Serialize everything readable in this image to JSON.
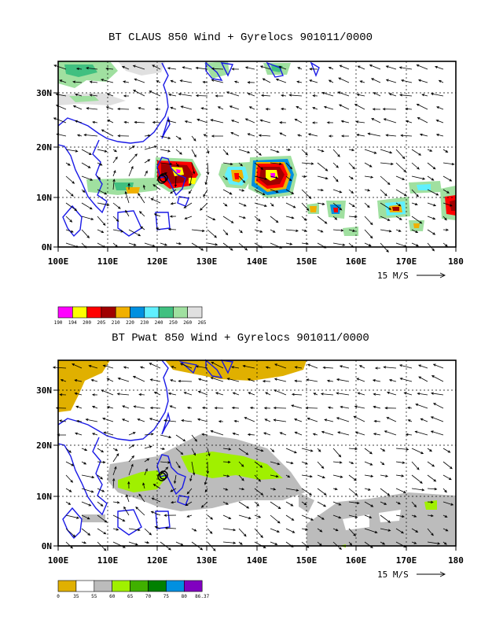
{
  "panels": [
    {
      "title": "BT CLAUS 850 Wind + Gyrelocs 901011/0000",
      "lon_labels": [
        "100E",
        "110E",
        "120E",
        "130E",
        "140E",
        "150E",
        "160E",
        "170E",
        "180"
      ],
      "lat_labels": [
        "0N",
        "10N",
        "20N",
        "30N"
      ],
      "ref_vector_label": "15 M/S",
      "colorbar": {
        "colors": [
          "#ff00ff",
          "#ffff00",
          "#ff0000",
          "#a00000",
          "#f0b000",
          "#0090e0",
          "#60f0ff",
          "#40c080",
          "#a0e0a0",
          "#e0e0e0"
        ],
        "labels": [
          "190",
          "194",
          "200",
          "205",
          "210",
          "220",
          "230",
          "240",
          "250",
          "260",
          "265"
        ]
      }
    },
    {
      "title": "BT Pwat 850 Wind + Gyrelocs 901011/0000",
      "lon_labels": [
        "100E",
        "110E",
        "120E",
        "130E",
        "140E",
        "150E",
        "160E",
        "170E",
        "180"
      ],
      "lat_labels": [
        "0N",
        "10N",
        "20N",
        "30N"
      ],
      "ref_vector_label": "15 M/S",
      "colorbar": {
        "colors": [
          "#e0b000",
          "#ffffff",
          "#bcbcbc",
          "#a0f000",
          "#40b000",
          "#008000",
          "#0090e0",
          "#8000c0"
        ],
        "labels": [
          "0",
          "35",
          "55",
          "60",
          "65",
          "70",
          "75",
          "80",
          "86.37"
        ]
      }
    }
  ]
}
